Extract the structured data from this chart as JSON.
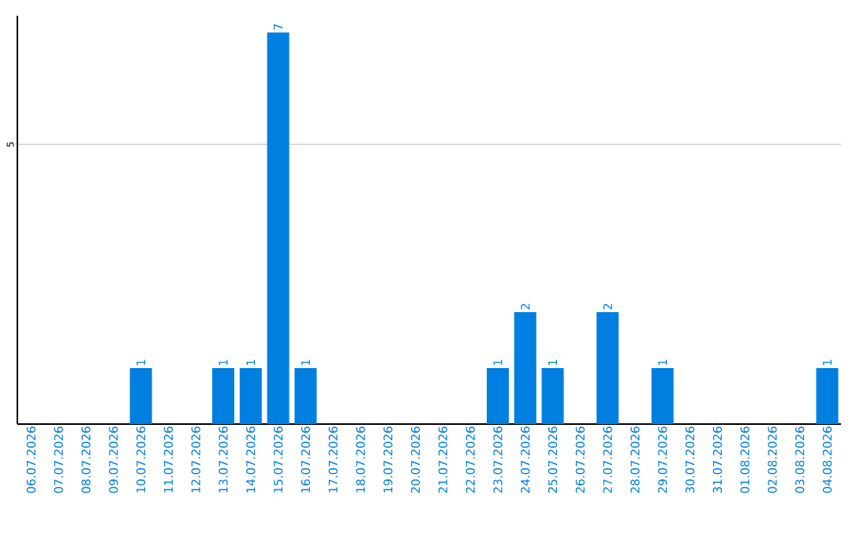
{
  "chart_data": {
    "type": "bar",
    "categories": [
      "06.07.2026",
      "07.07.2026",
      "08.07.2026",
      "09.07.2026",
      "10.07.2026",
      "11.07.2026",
      "12.07.2026",
      "13.07.2026",
      "14.07.2026",
      "15.07.2026",
      "16.07.2026",
      "17.07.2026",
      "18.07.2026",
      "19.07.2026",
      "20.07.2026",
      "21.07.2026",
      "22.07.2026",
      "23.07.2026",
      "24.07.2026",
      "25.07.2026",
      "26.07.2026",
      "27.07.2026",
      "28.07.2026",
      "29.07.2026",
      "30.07.2026",
      "31.07.2026",
      "01.08.2026",
      "02.08.2026",
      "03.08.2026",
      "04.08.2026"
    ],
    "values": [
      0,
      0,
      0,
      0,
      1,
      0,
      0,
      1,
      1,
      7,
      1,
      0,
      0,
      0,
      0,
      0,
      0,
      1,
      2,
      1,
      0,
      2,
      0,
      1,
      0,
      0,
      0,
      0,
      0,
      1
    ],
    "value_labels": [
      null,
      null,
      null,
      null,
      "1",
      null,
      null,
      "1",
      "1",
      "7",
      "1",
      null,
      null,
      null,
      null,
      null,
      null,
      "1",
      "2",
      "1",
      null,
      "2",
      null,
      "1",
      null,
      null,
      null,
      null,
      null,
      "1"
    ],
    "color": "#007fe0",
    "ylim": [
      0,
      7.3
    ],
    "yticks": [
      5
    ],
    "grid": "y"
  }
}
